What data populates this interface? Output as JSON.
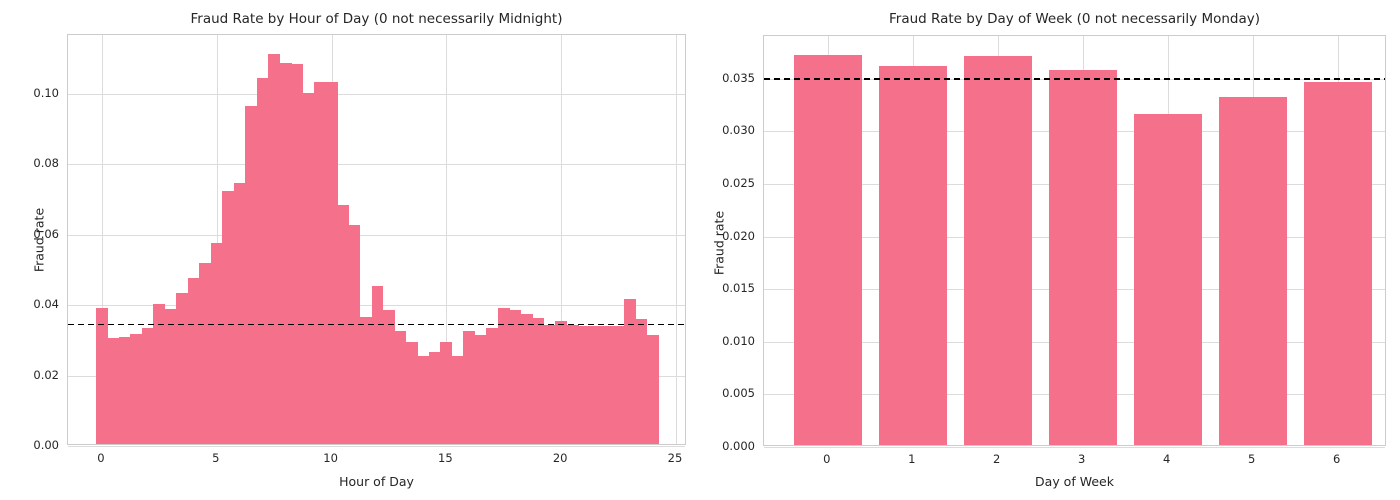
{
  "figure": {
    "background_color": "#ffffff",
    "bar_color": "#f5708a",
    "grid_color": "#dcdcdc",
    "spine_color": "#cccccc",
    "text_color": "#262626",
    "reference_line_color": "#000000"
  },
  "chart_data": [
    {
      "type": "bar",
      "title": "Fraud Rate by Hour of Day (0 not necessarily Midnight)",
      "xlabel": "Hour of Day",
      "ylabel": "Fraud rate",
      "x": [
        0,
        0.5,
        1,
        1.5,
        2,
        2.5,
        3,
        3.5,
        4,
        4.5,
        5,
        5.5,
        6,
        6.5,
        7,
        7.5,
        8,
        8.5,
        9,
        9.5,
        10,
        10.5,
        11,
        11.5,
        12,
        12.5,
        13,
        13.5,
        14,
        14.5,
        15,
        15.5,
        16,
        16.5,
        17,
        17.5,
        18,
        18.5,
        19,
        19.5,
        20,
        20.5,
        21,
        21.5,
        22,
        22.5,
        23,
        23.5,
        24
      ],
      "values": [
        0.0385,
        0.03,
        0.0305,
        0.0312,
        0.033,
        0.0398,
        0.0382,
        0.043,
        0.047,
        0.0515,
        0.057,
        0.0718,
        0.074,
        0.096,
        0.104,
        0.1108,
        0.1082,
        0.108,
        0.0998,
        0.1028,
        0.1028,
        0.068,
        0.0622,
        0.036,
        0.045,
        0.038,
        0.032,
        0.029,
        0.025,
        0.026,
        0.029,
        0.025,
        0.032,
        0.031,
        0.033,
        0.0385,
        0.038,
        0.0368,
        0.0358,
        0.0338,
        0.0348,
        0.0338,
        0.0334,
        0.0334,
        0.0334,
        0.0334,
        0.0412,
        0.0355,
        0.031
      ],
      "bar_width": 0.5,
      "bars_contiguous": true,
      "xlim": [
        -1.48,
        25.48
      ],
      "ylim": [
        0,
        0.1167
      ],
      "xticks": {
        "values": [
          0,
          5,
          10,
          15,
          20,
          25
        ],
        "labels": [
          "0",
          "5",
          "10",
          "15",
          "20",
          "25"
        ]
      },
      "yticks": {
        "values": [
          0.0,
          0.02,
          0.04,
          0.06,
          0.08,
          0.1
        ],
        "labels": [
          "0.00",
          "0.02",
          "0.04",
          "0.06",
          "0.08",
          "0.10"
        ]
      },
      "reference_line": {
        "value": 0.0345,
        "style": "dashed",
        "color": "#000000"
      },
      "grid": true,
      "legend": null
    },
    {
      "type": "bar",
      "title": "Fraud Rate by Day of Week (0 not necessarily Monday)",
      "xlabel": "Day of Week",
      "ylabel": "Fraud rate",
      "x": [
        0,
        1,
        2,
        3,
        4,
        5,
        6
      ],
      "categories": [
        "0",
        "1",
        "2",
        "3",
        "4",
        "5",
        "6"
      ],
      "values": [
        0.0371,
        0.036,
        0.037,
        0.0356,
        0.0315,
        0.0331,
        0.0345
      ],
      "bar_width": 0.8,
      "bars_contiguous": false,
      "xlim": [
        -0.75,
        6.58
      ],
      "ylim": [
        0,
        0.03906
      ],
      "xticks": {
        "values": [
          0,
          1,
          2,
          3,
          4,
          5,
          6
        ],
        "labels": [
          "0",
          "1",
          "2",
          "3",
          "4",
          "5",
          "6"
        ]
      },
      "yticks": {
        "values": [
          0.0,
          0.005,
          0.01,
          0.015,
          0.02,
          0.025,
          0.03,
          0.035
        ],
        "labels": [
          "0.000",
          "0.005",
          "0.010",
          "0.015",
          "0.020",
          "0.025",
          "0.030",
          "0.035"
        ]
      },
      "reference_line": {
        "value": 0.035,
        "style": "dashed",
        "color": "#000000"
      },
      "grid": true,
      "legend": null
    }
  ]
}
